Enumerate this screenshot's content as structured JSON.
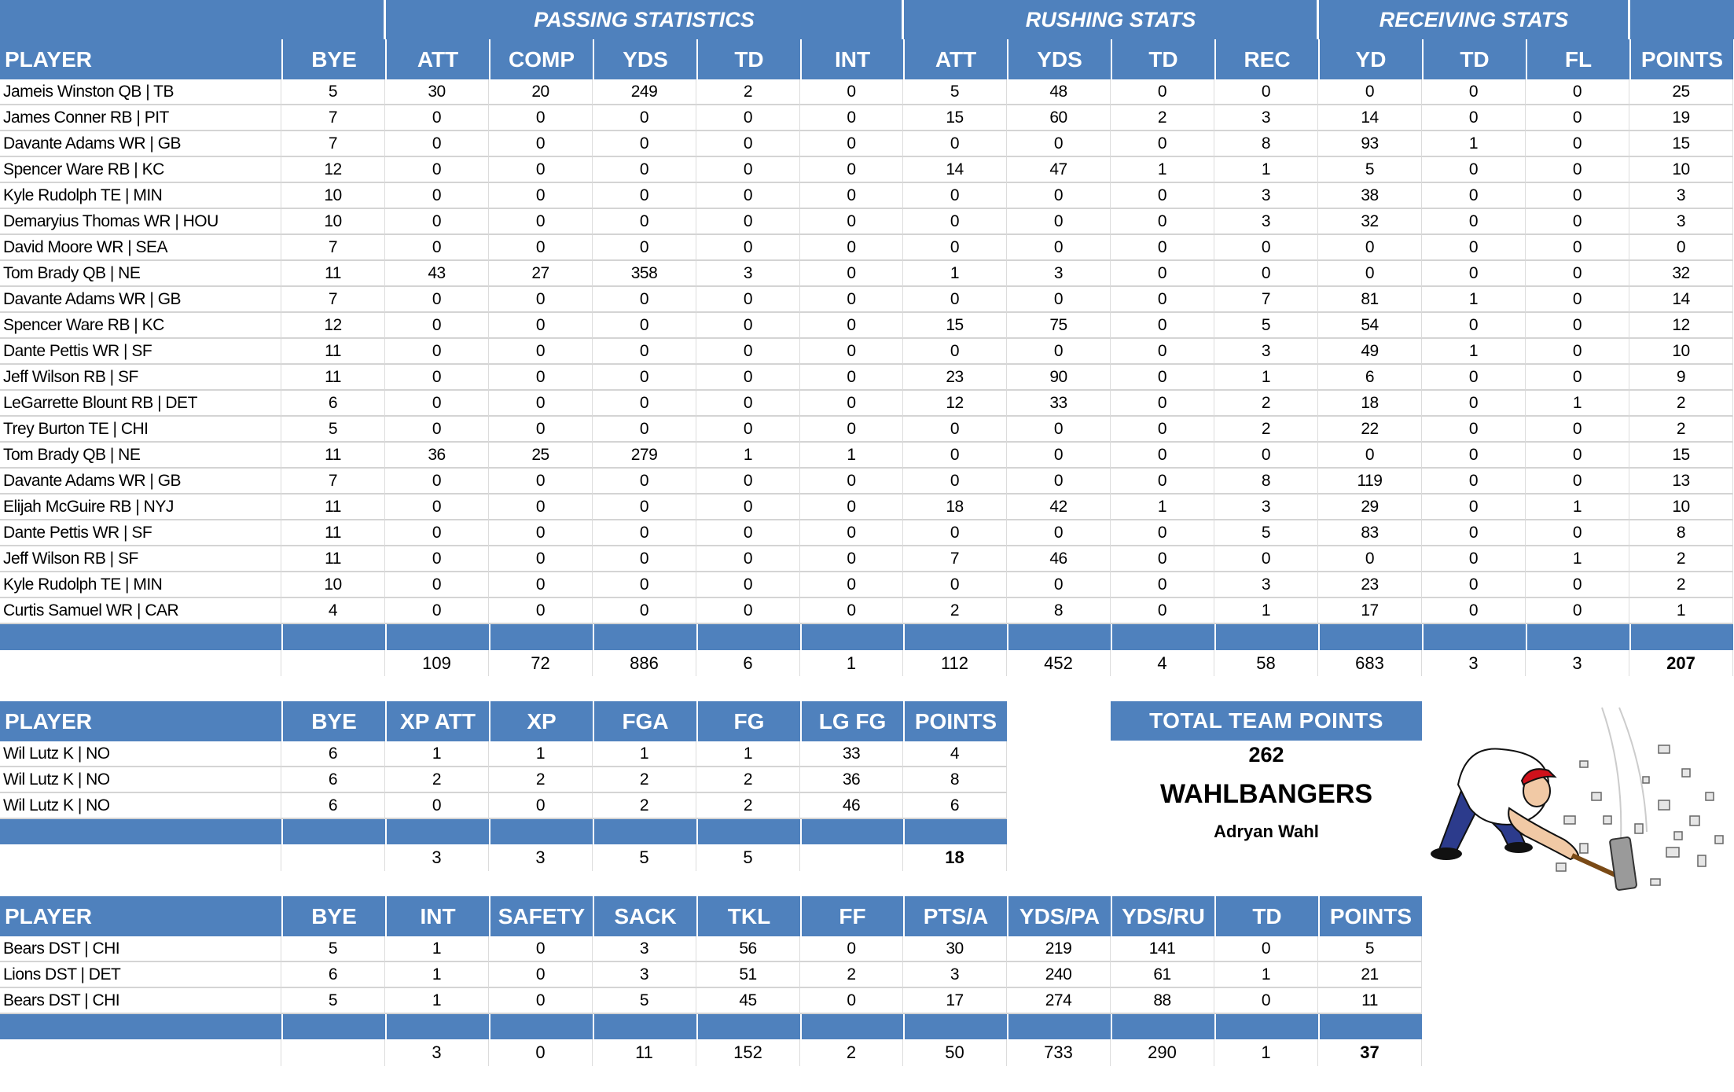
{
  "colors": {
    "header": "#4F81BD",
    "grid": "#d4d4d4",
    "text": "#000000"
  },
  "offense": {
    "group_headers": {
      "passing": "PASSING STATISTICS",
      "rushing": "RUSHING STATS",
      "receiving": "RECEIVING STATS"
    },
    "columns": [
      "PLAYER",
      "BYE",
      "ATT",
      "COMP",
      "YDS",
      "TD",
      "INT",
      "ATT",
      "YDS",
      "TD",
      "REC",
      "YD",
      "TD",
      "FL",
      "POINTS"
    ],
    "rows": [
      [
        "Jameis Winston QB | TB",
        "5",
        "30",
        "20",
        "249",
        "2",
        "0",
        "5",
        "48",
        "0",
        "0",
        "0",
        "0",
        "0",
        "25"
      ],
      [
        "James Conner RB | PIT",
        "7",
        "0",
        "0",
        "0",
        "0",
        "0",
        "15",
        "60",
        "2",
        "3",
        "14",
        "0",
        "0",
        "19"
      ],
      [
        "Davante Adams WR | GB",
        "7",
        "0",
        "0",
        "0",
        "0",
        "0",
        "0",
        "0",
        "0",
        "8",
        "93",
        "1",
        "0",
        "15"
      ],
      [
        "Spencer Ware RB | KC",
        "12",
        "0",
        "0",
        "0",
        "0",
        "0",
        "14",
        "47",
        "1",
        "1",
        "5",
        "0",
        "0",
        "10"
      ],
      [
        "Kyle Rudolph TE | MIN",
        "10",
        "0",
        "0",
        "0",
        "0",
        "0",
        "0",
        "0",
        "0",
        "3",
        "38",
        "0",
        "0",
        "3"
      ],
      [
        "Demaryius Thomas WR | HOU",
        "10",
        "0",
        "0",
        "0",
        "0",
        "0",
        "0",
        "0",
        "0",
        "3",
        "32",
        "0",
        "0",
        "3"
      ],
      [
        "David Moore WR | SEA",
        "7",
        "0",
        "0",
        "0",
        "0",
        "0",
        "0",
        "0",
        "0",
        "0",
        "0",
        "0",
        "0",
        "0"
      ],
      [
        "Tom Brady QB | NE",
        "11",
        "43",
        "27",
        "358",
        "3",
        "0",
        "1",
        "3",
        "0",
        "0",
        "0",
        "0",
        "0",
        "32"
      ],
      [
        "Davante Adams WR | GB",
        "7",
        "0",
        "0",
        "0",
        "0",
        "0",
        "0",
        "0",
        "0",
        "7",
        "81",
        "1",
        "0",
        "14"
      ],
      [
        "Spencer Ware RB | KC",
        "12",
        "0",
        "0",
        "0",
        "0",
        "0",
        "15",
        "75",
        "0",
        "5",
        "54",
        "0",
        "0",
        "12"
      ],
      [
        "Dante Pettis WR | SF",
        "11",
        "0",
        "0",
        "0",
        "0",
        "0",
        "0",
        "0",
        "0",
        "3",
        "49",
        "1",
        "0",
        "10"
      ],
      [
        "Jeff Wilson RB | SF",
        "11",
        "0",
        "0",
        "0",
        "0",
        "0",
        "23",
        "90",
        "0",
        "1",
        "6",
        "0",
        "0",
        "9"
      ],
      [
        "LeGarrette Blount RB | DET",
        "6",
        "0",
        "0",
        "0",
        "0",
        "0",
        "12",
        "33",
        "0",
        "2",
        "18",
        "0",
        "1",
        "2"
      ],
      [
        "Trey Burton TE | CHI",
        "5",
        "0",
        "0",
        "0",
        "0",
        "0",
        "0",
        "0",
        "0",
        "2",
        "22",
        "0",
        "0",
        "2"
      ],
      [
        "Tom Brady QB | NE",
        "11",
        "36",
        "25",
        "279",
        "1",
        "1",
        "0",
        "0",
        "0",
        "0",
        "0",
        "0",
        "0",
        "15"
      ],
      [
        "Davante Adams WR | GB",
        "7",
        "0",
        "0",
        "0",
        "0",
        "0",
        "0",
        "0",
        "0",
        "8",
        "119",
        "0",
        "0",
        "13"
      ],
      [
        "Elijah McGuire RB | NYJ",
        "11",
        "0",
        "0",
        "0",
        "0",
        "0",
        "18",
        "42",
        "1",
        "3",
        "29",
        "0",
        "1",
        "10"
      ],
      [
        "Dante Pettis WR | SF",
        "11",
        "0",
        "0",
        "0",
        "0",
        "0",
        "0",
        "0",
        "0",
        "5",
        "83",
        "0",
        "0",
        "8"
      ],
      [
        "Jeff Wilson RB | SF",
        "11",
        "0",
        "0",
        "0",
        "0",
        "0",
        "7",
        "46",
        "0",
        "0",
        "0",
        "0",
        "1",
        "2"
      ],
      [
        "Kyle Rudolph TE | MIN",
        "10",
        "0",
        "0",
        "0",
        "0",
        "0",
        "0",
        "0",
        "0",
        "3",
        "23",
        "0",
        "0",
        "2"
      ],
      [
        "Curtis Samuel WR | CAR",
        "4",
        "0",
        "0",
        "0",
        "0",
        "0",
        "2",
        "8",
        "0",
        "1",
        "17",
        "0",
        "0",
        "1"
      ]
    ],
    "totals": [
      "",
      "",
      "109",
      "72",
      "886",
      "6",
      "1",
      "112",
      "452",
      "4",
      "58",
      "683",
      "3",
      "3",
      "207"
    ]
  },
  "kicker": {
    "columns": [
      "PLAYER",
      "BYE",
      "XP ATT",
      "XP",
      "FGA",
      "FG",
      "LG FG",
      "POINTS"
    ],
    "rows": [
      [
        "Wil Lutz K | NO",
        "6",
        "1",
        "1",
        "1",
        "1",
        "33",
        "4"
      ],
      [
        "Wil Lutz K | NO",
        "6",
        "2",
        "2",
        "2",
        "2",
        "36",
        "8"
      ],
      [
        "Wil Lutz K | NO",
        "6",
        "0",
        "0",
        "2",
        "2",
        "46",
        "6"
      ]
    ],
    "totals": [
      "",
      "",
      "3",
      "3",
      "5",
      "5",
      "",
      "18"
    ]
  },
  "defense": {
    "columns": [
      "PLAYER",
      "BYE",
      "INT",
      "SAFETY",
      "SACK",
      "TKL",
      "FF",
      "PTS/A",
      "YDS/PA",
      "YDS/RU",
      "TD",
      "POINTS"
    ],
    "rows": [
      [
        "Bears DST | CHI",
        "5",
        "1",
        "0",
        "3",
        "56",
        "0",
        "30",
        "219",
        "141",
        "0",
        "5"
      ],
      [
        "Lions DST | DET",
        "6",
        "1",
        "0",
        "3",
        "51",
        "2",
        "3",
        "240",
        "61",
        "1",
        "21"
      ],
      [
        "Bears DST | CHI",
        "5",
        "1",
        "0",
        "5",
        "45",
        "0",
        "17",
        "274",
        "88",
        "0",
        "11"
      ]
    ],
    "totals": [
      "",
      "",
      "3",
      "0",
      "11",
      "152",
      "2",
      "50",
      "733",
      "290",
      "1",
      "37"
    ]
  },
  "team": {
    "total_label": "TOTAL TEAM POINTS",
    "total_points": "262",
    "team_name": "WAHLBANGERS",
    "owner": "Adryan Wahl",
    "image_icon": "man-swinging-sledgehammer-illustration"
  }
}
